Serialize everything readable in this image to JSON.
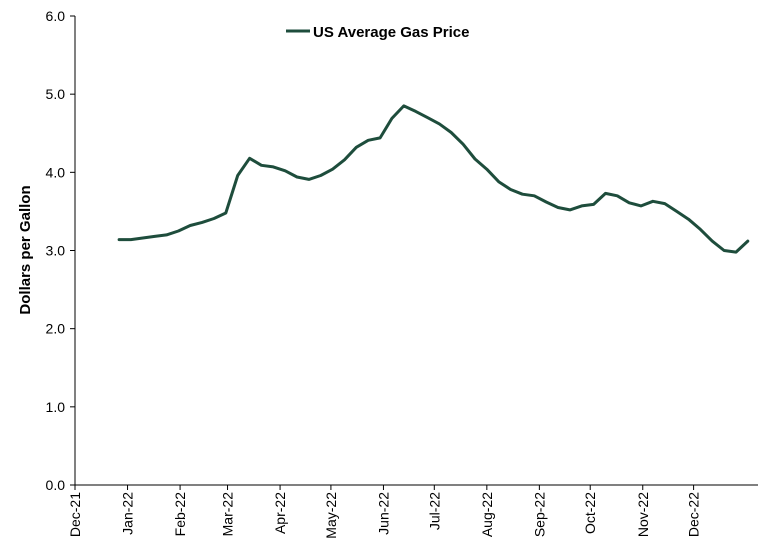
{
  "chart_data": {
    "type": "line",
    "title": "",
    "xlabel": "",
    "ylabel": "Dollars per Gallon",
    "ylim": [
      0,
      6
    ],
    "y_ticks": [
      "0.0",
      "1.0",
      "2.0",
      "3.0",
      "4.0",
      "5.0",
      "6.0"
    ],
    "x_ticks": [
      "Dec-21",
      "Jan-22",
      "Feb-22",
      "Mar-22",
      "Apr-22",
      "May-22",
      "Jun-22",
      "Jul-22",
      "Aug-22",
      "Sep-22",
      "Oct-22",
      "Nov-22",
      "Dec-22"
    ],
    "grid": false,
    "legend_position": "top-center",
    "colors": {
      "series": "#1e4d3c",
      "axis": "#000000"
    },
    "series": [
      {
        "name": "US Average Gas Price",
        "x": [
          "2021-12-27",
          "2022-01-03",
          "2022-01-10",
          "2022-01-17",
          "2022-01-24",
          "2022-01-31",
          "2022-02-07",
          "2022-02-14",
          "2022-02-21",
          "2022-02-28",
          "2022-03-07",
          "2022-03-14",
          "2022-03-21",
          "2022-03-28",
          "2022-04-04",
          "2022-04-11",
          "2022-04-18",
          "2022-04-25",
          "2022-05-02",
          "2022-05-09",
          "2022-05-16",
          "2022-05-23",
          "2022-05-30",
          "2022-06-06",
          "2022-06-13",
          "2022-06-20",
          "2022-06-27",
          "2022-07-04",
          "2022-07-11",
          "2022-07-18",
          "2022-07-25",
          "2022-08-01",
          "2022-08-08",
          "2022-08-15",
          "2022-08-22",
          "2022-08-29",
          "2022-09-05",
          "2022-09-12",
          "2022-09-19",
          "2022-09-26",
          "2022-10-03",
          "2022-10-10",
          "2022-10-17",
          "2022-10-24",
          "2022-10-31",
          "2022-11-07",
          "2022-11-14",
          "2022-11-21",
          "2022-11-28",
          "2022-12-05",
          "2022-12-12",
          "2022-12-19",
          "2022-12-26",
          "2023-01-02"
        ],
        "values": [
          3.14,
          3.14,
          3.16,
          3.18,
          3.2,
          3.25,
          3.32,
          3.36,
          3.41,
          3.48,
          3.96,
          4.18,
          4.09,
          4.07,
          4.02,
          3.94,
          3.91,
          3.96,
          4.04,
          4.16,
          4.32,
          4.41,
          4.44,
          4.69,
          4.85,
          4.78,
          4.7,
          4.62,
          4.51,
          4.36,
          4.17,
          4.04,
          3.88,
          3.78,
          3.72,
          3.7,
          3.62,
          3.55,
          3.52,
          3.57,
          3.59,
          3.73,
          3.7,
          3.61,
          3.57,
          3.63,
          3.6,
          3.5,
          3.4,
          3.27,
          3.12,
          3.0,
          2.98,
          3.12
        ]
      }
    ]
  }
}
